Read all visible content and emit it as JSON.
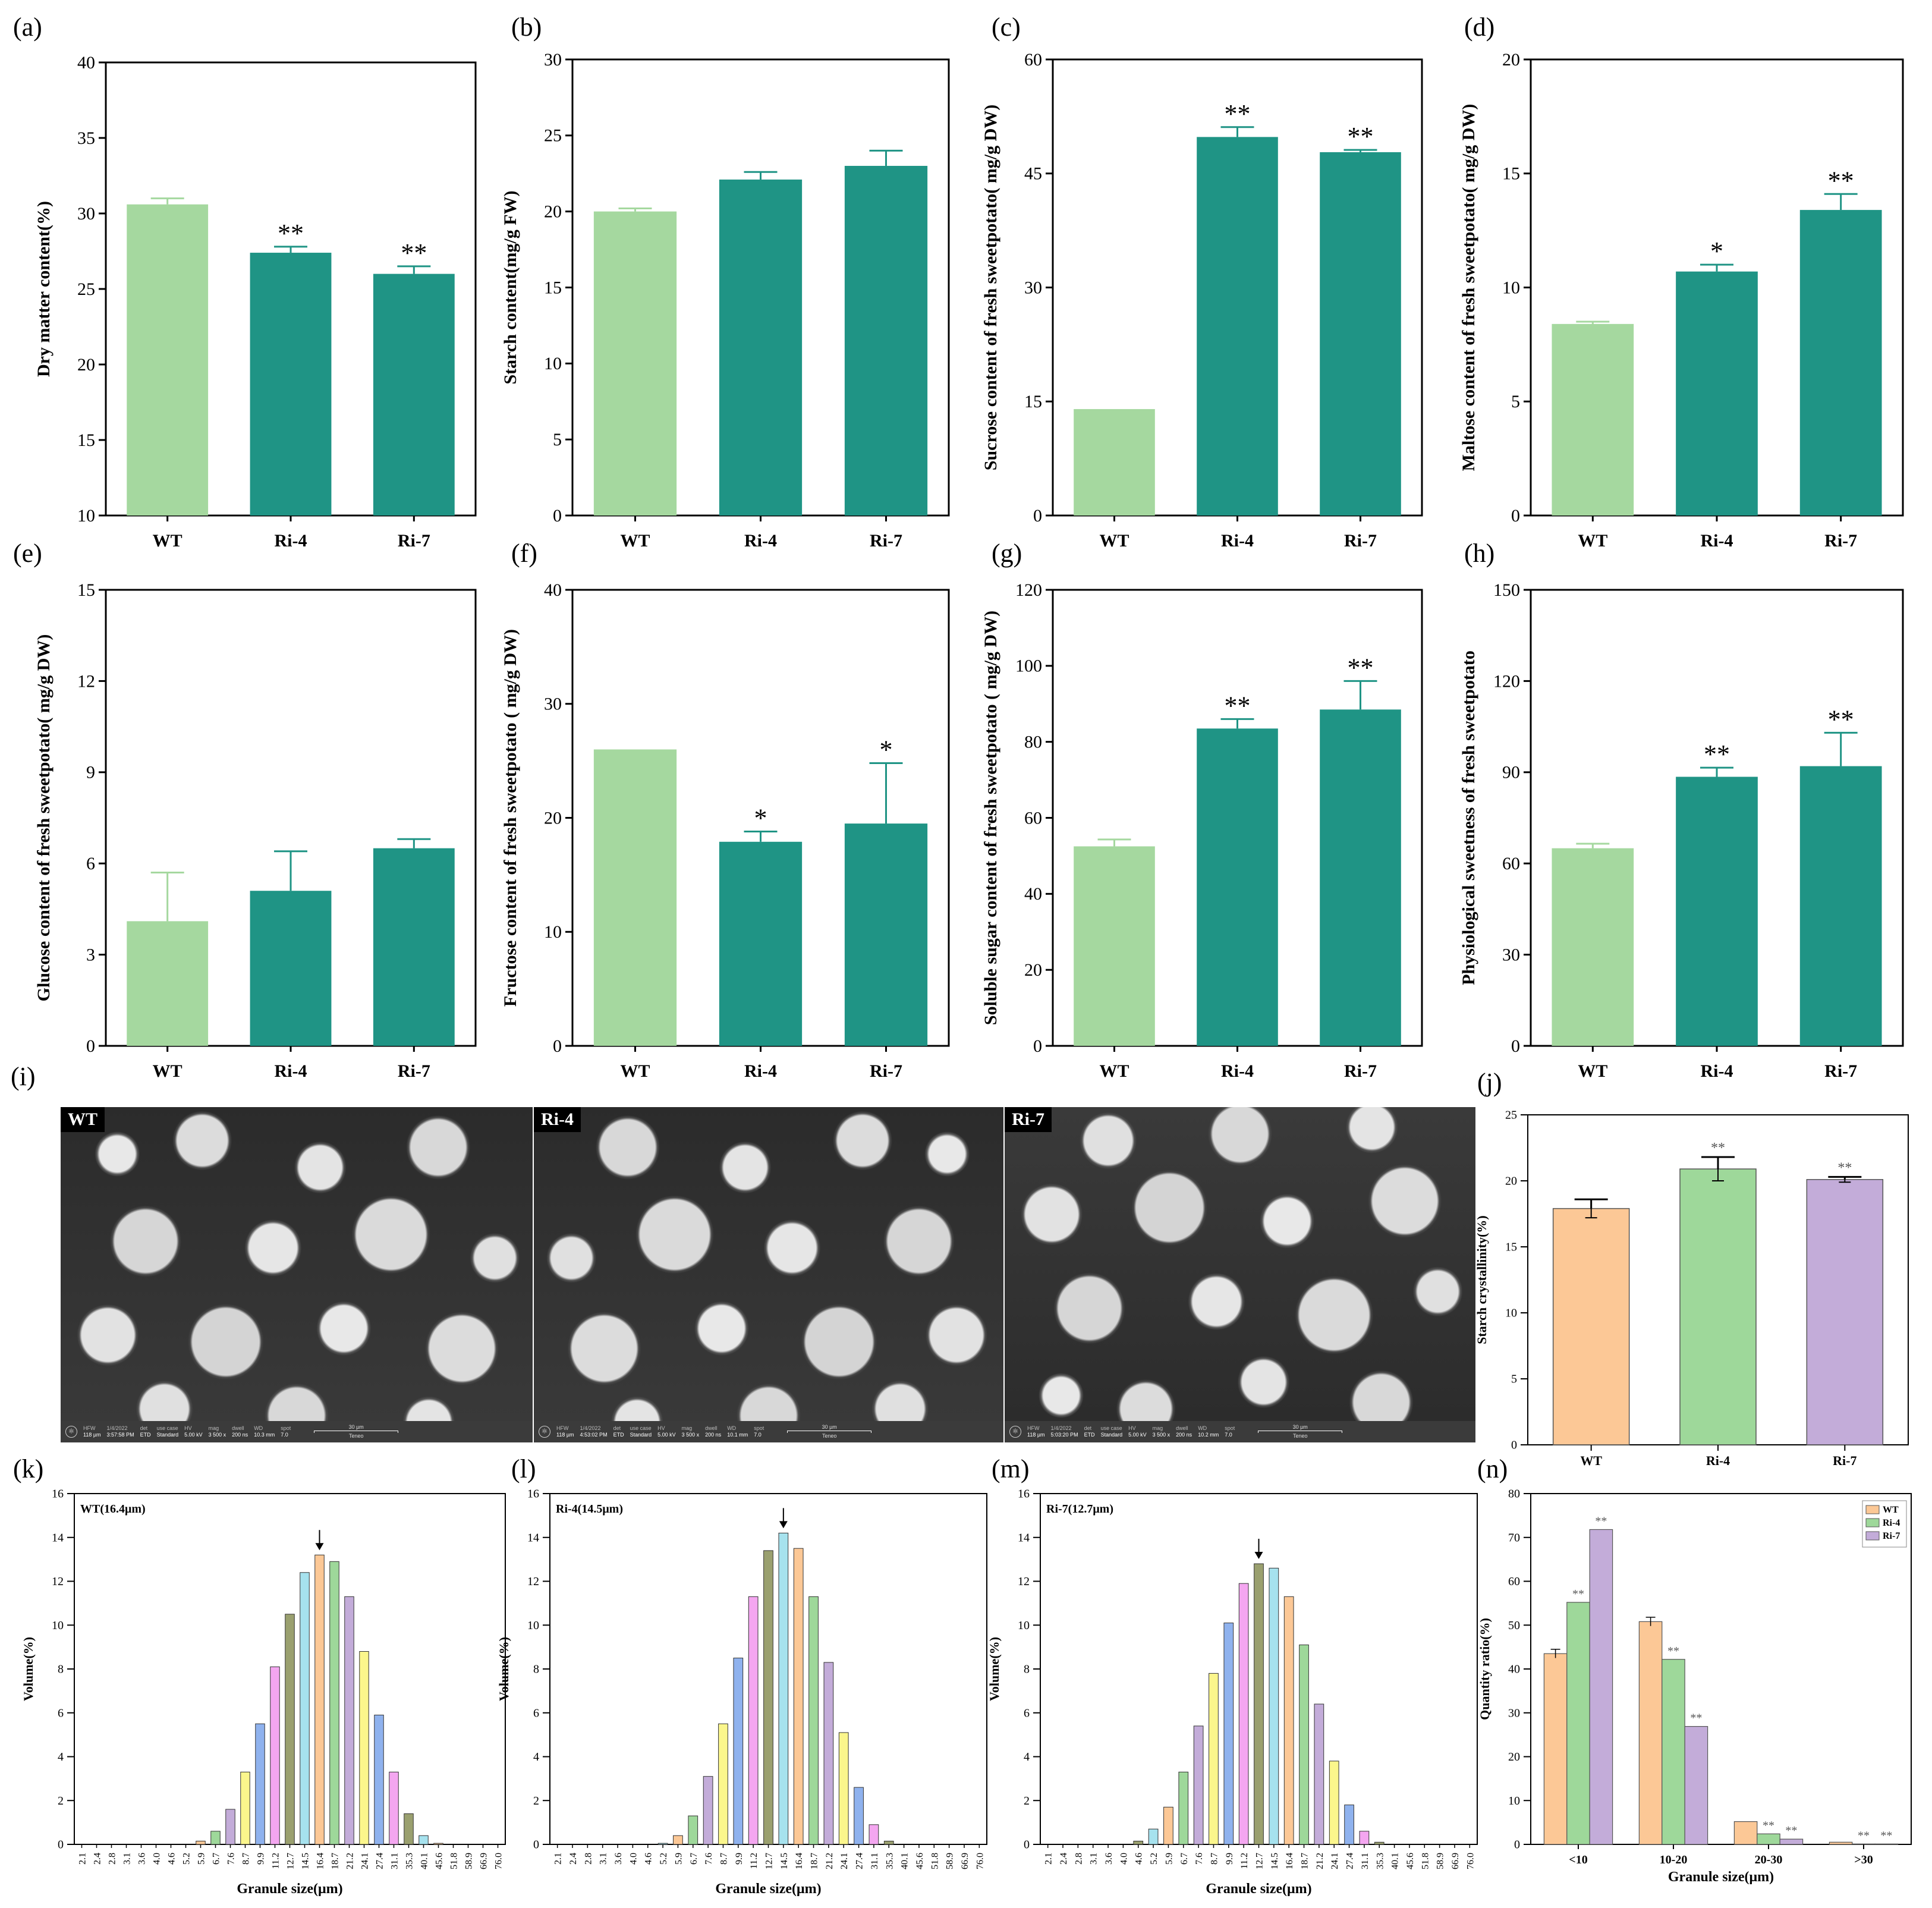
{
  "figure": {
    "sem_panel": {
      "letter": "(i)",
      "images": [
        {
          "tag": "WT",
          "hfw": "118 µm",
          "date": "1/4/2022",
          "time": "3:57:58 PM",
          "det": "ETD",
          "use_case": "Standard",
          "hv": "5.00 kV",
          "mag": "3 500 x",
          "dwell": "200 ns",
          "wd": "10.3 mm",
          "spot": "7.0",
          "scale": "30 µm",
          "brand": "Teneo"
        },
        {
          "tag": "Ri-4",
          "hfw": "118 µm",
          "date": "1/4/2022",
          "time": "4:53:02 PM",
          "det": "ETD",
          "use_case": "Standard",
          "hv": "5.00 kV",
          "mag": "3 500 x",
          "dwell": "200 ns",
          "wd": "10.1 mm",
          "spot": "7.0",
          "scale": "30 µm",
          "brand": "Teneo"
        },
        {
          "tag": "Ri-7",
          "hfw": "118 µm",
          "date": "1/4/2022",
          "time": "5:03:20 PM",
          "det": "ETD",
          "use_case": "Standard",
          "hv": "5.00 kV",
          "mag": "3 500 x",
          "dwell": "200 ns",
          "wd": "10.2 mm",
          "spot": "7.0",
          "scale": "30 µm",
          "brand": "Teneo"
        }
      ],
      "bar_labels": {
        "hfw": "HFW",
        "date": "1/4/2022",
        "det": "det",
        "use_case": "use case",
        "hv": "HV",
        "mag": "mag",
        "dwell": "dwell",
        "wd": "WD",
        "spot": "spot"
      }
    },
    "colors": {
      "wt_green": "#a5d89f",
      "teal": "#1f9485",
      "orange": "#fcc896",
      "green": "#9ed89a",
      "purple": "#c3acd9"
    }
  },
  "chart_data": [
    {
      "id": "a",
      "letter": "(a)",
      "type": "bar",
      "categories": [
        "WT",
        "Ri-4",
        "Ri-7"
      ],
      "values": [
        30.6,
        27.4,
        26.0
      ],
      "errors": [
        0.4,
        0.4,
        0.5
      ],
      "sig": [
        "",
        "**",
        "**"
      ],
      "ylabel": "Dry matter content(%)",
      "ylim": [
        10,
        40
      ],
      "yticks": [
        10,
        15,
        20,
        25,
        30,
        35,
        40
      ]
    },
    {
      "id": "b",
      "letter": "(b)",
      "type": "bar",
      "categories": [
        "WT",
        "Ri-4",
        "Ri-7"
      ],
      "values": [
        20.0,
        22.1,
        23.0
      ],
      "errors": [
        0.2,
        0.5,
        1.0
      ],
      "sig": [
        "",
        "",
        ""
      ],
      "ylabel": "Starch content(mg/g FW)",
      "ylim": [
        0,
        30
      ],
      "yticks": [
        0,
        5,
        10,
        15,
        20,
        25,
        30
      ]
    },
    {
      "id": "c",
      "letter": "(c)",
      "type": "bar",
      "categories": [
        "WT",
        "Ri-4",
        "Ri-7"
      ],
      "values": [
        14.0,
        49.8,
        47.8
      ],
      "errors": [
        0.0,
        1.3,
        0.3
      ],
      "sig": [
        "",
        "**",
        "**"
      ],
      "ylabel": "Sucrose content of fresh sweetpotato( mg/g DW)",
      "ylim": [
        0,
        60
      ],
      "yticks": [
        0,
        15,
        30,
        45,
        60
      ]
    },
    {
      "id": "d",
      "letter": "(d)",
      "type": "bar",
      "categories": [
        "WT",
        "Ri-4",
        "Ri-7"
      ],
      "values": [
        8.4,
        10.7,
        13.4
      ],
      "errors": [
        0.1,
        0.3,
        0.7
      ],
      "sig": [
        "",
        "*",
        "**"
      ],
      "ylabel": "Maltose content of fresh sweetpotato( mg/g DW)",
      "ylim": [
        0,
        20
      ],
      "yticks": [
        0,
        5,
        10,
        15,
        20
      ]
    },
    {
      "id": "e",
      "letter": "(e)",
      "type": "bar",
      "categories": [
        "WT",
        "Ri-4",
        "Ri-7"
      ],
      "values": [
        4.1,
        5.1,
        6.5
      ],
      "errors": [
        1.6,
        1.3,
        0.3
      ],
      "sig": [
        "",
        "",
        ""
      ],
      "ylabel": "Glucose content of fresh sweetpotato( mg/g DW)",
      "ylim": [
        0,
        15
      ],
      "yticks": [
        0,
        3,
        6,
        9,
        12,
        15
      ]
    },
    {
      "id": "f",
      "letter": "(f)",
      "type": "bar",
      "categories": [
        "WT",
        "Ri-4",
        "Ri-7"
      ],
      "values": [
        26.0,
        17.9,
        19.5
      ],
      "errors": [
        0.0,
        0.9,
        5.3
      ],
      "sig": [
        "",
        "*",
        "*"
      ],
      "ylabel": "Fructose content of fresh sweetpotato ( mg/g DW)",
      "ylim": [
        0,
        40
      ],
      "yticks": [
        0,
        10,
        20,
        30,
        40
      ]
    },
    {
      "id": "g",
      "letter": "(g)",
      "type": "bar",
      "categories": [
        "WT",
        "Ri-4",
        "Ri-7"
      ],
      "values": [
        52.5,
        83.5,
        88.5
      ],
      "errors": [
        1.8,
        2.5,
        7.5
      ],
      "sig": [
        "",
        "**",
        "**"
      ],
      "ylabel": "Soluble sugar content of fresh sweetpotato ( mg/g DW)",
      "ylim": [
        0,
        120
      ],
      "yticks": [
        0,
        20,
        40,
        60,
        80,
        100,
        120
      ]
    },
    {
      "id": "h",
      "letter": "(h)",
      "type": "bar",
      "categories": [
        "WT",
        "Ri-4",
        "Ri-7"
      ],
      "values": [
        65.0,
        88.5,
        92.0
      ],
      "errors": [
        1.5,
        3.0,
        11.0
      ],
      "sig": [
        "",
        "**",
        "**"
      ],
      "ylabel": "Physiological sweetness of fresh sweetpotato",
      "ylim": [
        0,
        150
      ],
      "yticks": [
        0,
        30,
        60,
        90,
        120,
        150
      ]
    },
    {
      "id": "j",
      "letter": "(j)",
      "type": "bar",
      "categories": [
        "WT",
        "Ri-4",
        "Ri-7"
      ],
      "values": [
        17.9,
        20.9,
        20.1
      ],
      "errors": [
        0.7,
        0.9,
        0.2
      ],
      "sig": [
        "",
        "**",
        "**"
      ],
      "ylabel": "Starch crystallinity(%)",
      "ylim": [
        0,
        25
      ],
      "yticks": [
        0,
        5,
        10,
        15,
        20,
        25
      ]
    },
    {
      "id": "k",
      "letter": "(k)",
      "type": "histogram",
      "title": "WT(16.4μm)",
      "xlabel": "Granule size(μm)",
      "ylabel": "Volume(%)",
      "ylim": [
        0,
        16
      ],
      "yticks": [
        0,
        2,
        4,
        6,
        8,
        10,
        12,
        14,
        16
      ],
      "peak_index": 16,
      "categories": [
        "2.1",
        "2.4",
        "2.8",
        "3.1",
        "3.6",
        "4.0",
        "4.6",
        "5.2",
        "5.9",
        "6.7",
        "7.6",
        "8.7",
        "9.9",
        "11.2",
        "12.7",
        "14.5",
        "16.4",
        "18.7",
        "21.2",
        "24.1",
        "27.4",
        "31.1",
        "35.3",
        "40.1",
        "45.6",
        "51.8",
        "58.9",
        "66.9",
        "76.0"
      ],
      "values": [
        0,
        0,
        0,
        0,
        0,
        0,
        0,
        0,
        0.15,
        0.6,
        1.6,
        3.3,
        5.5,
        8.1,
        10.5,
        12.4,
        13.2,
        12.9,
        11.3,
        8.8,
        5.9,
        3.3,
        1.4,
        0.4,
        0.05,
        0,
        0,
        0,
        0
      ]
    },
    {
      "id": "l",
      "letter": "(l)",
      "type": "histogram",
      "title": "Ri-4(14.5μm)",
      "xlabel": "Granule size(μm)",
      "ylabel": "Volume(%)",
      "ylim": [
        0,
        16
      ],
      "yticks": [
        0,
        2,
        4,
        6,
        8,
        10,
        12,
        14,
        16
      ],
      "peak_index": 15,
      "categories": [
        "2.1",
        "2.4",
        "2.8",
        "3.1",
        "3.6",
        "4.0",
        "4.6",
        "5.2",
        "5.9",
        "6.7",
        "7.6",
        "8.7",
        "9.9",
        "11.2",
        "12.7",
        "14.5",
        "16.4",
        "18.7",
        "21.2",
        "24.1",
        "27.4",
        "31.1",
        "35.3",
        "40.1",
        "45.6",
        "51.8",
        "58.9",
        "66.9",
        "76.0"
      ],
      "values": [
        0,
        0,
        0,
        0,
        0,
        0,
        0,
        0.05,
        0.4,
        1.3,
        3.1,
        5.5,
        8.5,
        11.3,
        13.4,
        14.2,
        13.5,
        11.3,
        8.3,
        5.1,
        2.6,
        0.9,
        0.15,
        0,
        0,
        0,
        0,
        0,
        0
      ]
    },
    {
      "id": "m",
      "letter": "(m)",
      "type": "histogram",
      "title": "Ri-7(12.7μm)",
      "xlabel": "Granule size(μm)",
      "ylabel": "Volume(%)",
      "ylim": [
        0,
        16
      ],
      "yticks": [
        0,
        2,
        4,
        6,
        8,
        10,
        12,
        14,
        16
      ],
      "peak_index": 14,
      "categories": [
        "2.1",
        "2.4",
        "2.8",
        "3.1",
        "3.6",
        "4.0",
        "4.6",
        "5.2",
        "5.9",
        "6.7",
        "7.6",
        "8.7",
        "9.9",
        "11.2",
        "12.7",
        "14.5",
        "16.4",
        "18.7",
        "21.2",
        "24.1",
        "27.4",
        "31.1",
        "35.3",
        "40.1",
        "45.6",
        "51.8",
        "58.9",
        "66.9",
        "76.0"
      ],
      "values": [
        0,
        0,
        0,
        0,
        0,
        0,
        0.15,
        0.7,
        1.7,
        3.3,
        5.4,
        7.8,
        10.1,
        11.9,
        12.8,
        12.6,
        11.3,
        9.1,
        6.4,
        3.8,
        1.8,
        0.6,
        0.1,
        0,
        0,
        0,
        0,
        0,
        0
      ]
    },
    {
      "id": "n",
      "letter": "(n)",
      "type": "bar",
      "grouped": true,
      "categories": [
        "<10",
        "10-20",
        "20-30",
        ">30"
      ],
      "xlabel": "Granule size(μm)",
      "ylabel": "Quantity ratio(%)",
      "ylim": [
        0,
        80
      ],
      "yticks": [
        0,
        10,
        20,
        30,
        40,
        50,
        60,
        70,
        80
      ],
      "legend": "top-right",
      "series": [
        {
          "name": "WT",
          "values": [
            43.5,
            50.8,
            5.2,
            0.5
          ],
          "errors": [
            1.0,
            1.0,
            0,
            0
          ],
          "sig": [
            "",
            "",
            "",
            ""
          ]
        },
        {
          "name": "Ri-4",
          "values": [
            55.2,
            42.2,
            2.4,
            0.1
          ],
          "errors": [
            0,
            0,
            0,
            0
          ],
          "sig": [
            "**",
            "**",
            "**",
            "**"
          ]
        },
        {
          "name": "Ri-7",
          "values": [
            71.8,
            26.9,
            1.2,
            0.1
          ],
          "errors": [
            0,
            0,
            0,
            0
          ],
          "sig": [
            "**",
            "**",
            "**",
            "**"
          ]
        }
      ]
    }
  ]
}
